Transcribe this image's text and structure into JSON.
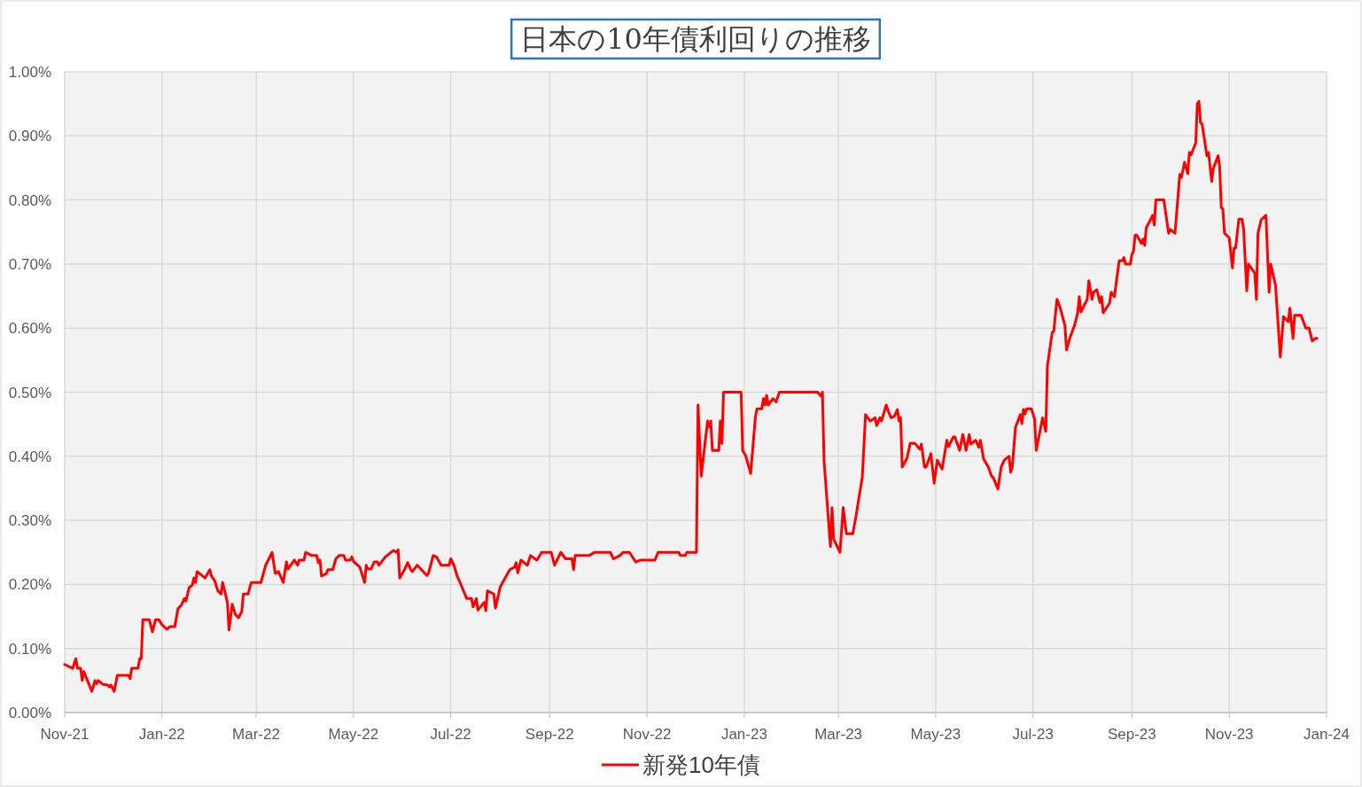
{
  "chart_data": {
    "type": "line",
    "title": "日本の10年債利回りの推移",
    "x": [
      "2021-11-01",
      "2021-11-06",
      "2021-11-08",
      "2021-11-09",
      "2021-11-11",
      "2021-11-12",
      "2021-11-13",
      "2021-11-18",
      "2021-11-20",
      "2021-11-21",
      "2021-11-22",
      "2021-11-25",
      "2021-11-28",
      "2021-11-29",
      "2021-11-30",
      "2021-12-02",
      "2021-12-04",
      "2021-12-11",
      "2021-12-12",
      "2021-12-13",
      "2021-12-17",
      "2021-12-18",
      "2021-12-19",
      "2021-12-20",
      "2021-12-24",
      "2021-12-26",
      "2021-12-28",
      "2021-12-30",
      "2022-01-01",
      "2022-01-04",
      "2022-01-06",
      "2022-01-09",
      "2022-01-11",
      "2022-01-13",
      "2022-01-15",
      "2022-01-16",
      "2022-01-18",
      "2022-01-20",
      "2022-01-21",
      "2022-01-22",
      "2022-01-23",
      "2022-01-28",
      "2022-01-31",
      "2022-02-01",
      "2022-02-03",
      "2022-02-05",
      "2022-02-07",
      "2022-02-08",
      "2022-02-11",
      "2022-02-12",
      "2022-02-14",
      "2022-02-16",
      "2022-02-18",
      "2022-02-20",
      "2022-02-21",
      "2022-02-24",
      "2022-02-25",
      "2022-02-26",
      "2022-02-28",
      "2022-03-04",
      "2022-03-07",
      "2022-03-11",
      "2022-03-13",
      "2022-03-15",
      "2022-03-18",
      "2022-03-20",
      "2022-03-21",
      "2022-03-25",
      "2022-03-27",
      "2022-03-28",
      "2022-03-31",
      "2022-04-01",
      "2022-04-05",
      "2022-04-08",
      "2022-04-09",
      "2022-04-10",
      "2022-04-11",
      "2022-04-14",
      "2022-04-15",
      "2022-04-18",
      "2022-04-20",
      "2022-04-22",
      "2022-04-25",
      "2022-04-26",
      "2022-04-29",
      "2022-04-30",
      "2022-05-01",
      "2022-05-05",
      "2022-05-08",
      "2022-05-09",
      "2022-05-10",
      "2022-05-12",
      "2022-05-14",
      "2022-05-16",
      "2022-05-17",
      "2022-05-21",
      "2022-05-26",
      "2022-05-28",
      "2022-05-29",
      "2022-05-30",
      "2022-06-02",
      "2022-06-04",
      "2022-06-06",
      "2022-06-07",
      "2022-06-10",
      "2022-06-16",
      "2022-06-17",
      "2022-06-20",
      "2022-06-22",
      "2022-06-25",
      "2022-06-30",
      "2022-07-01",
      "2022-07-03",
      "2022-07-05",
      "2022-07-07",
      "2022-07-11",
      "2022-07-14",
      "2022-07-15",
      "2022-07-17",
      "2022-07-18",
      "2022-07-22",
      "2022-07-23",
      "2022-07-24",
      "2022-07-28",
      "2022-07-29",
      "2022-08-01",
      "2022-08-07",
      "2022-08-10",
      "2022-08-11",
      "2022-08-12",
      "2022-08-14",
      "2022-08-18",
      "2022-08-20",
      "2022-08-24",
      "2022-08-27",
      "2022-09-02",
      "2022-09-04",
      "2022-09-08",
      "2022-09-11",
      "2022-09-15",
      "2022-09-16",
      "2022-09-17",
      "2022-09-26",
      "2022-09-29",
      "2022-10-09",
      "2022-10-11",
      "2022-10-15",
      "2022-10-17",
      "2022-10-21",
      "2022-10-25",
      "2022-10-28",
      "2022-11-06",
      "2022-11-08",
      "2022-11-21",
      "2022-11-22",
      "2022-11-25",
      "2022-11-26",
      "2022-12-01",
      "2022-12-02",
      "2022-12-03",
      "2022-12-05",
      "2022-12-09",
      "2022-12-10",
      "2022-12-11",
      "2022-12-12",
      "2022-12-16",
      "2022-12-17",
      "2022-12-18",
      "2022-12-19",
      "2022-12-30",
      "2022-12-31",
      "2023-01-02",
      "2023-01-05",
      "2023-01-08",
      "2023-01-09",
      "2023-01-12",
      "2023-01-13",
      "2023-01-14",
      "2023-01-15",
      "2023-01-16",
      "2023-01-19",
      "2023-01-21",
      "2023-01-23",
      "2023-02-16",
      "2023-02-18",
      "2023-02-19",
      "2023-02-20",
      "2023-02-24",
      "2023-02-25",
      "2023-02-26",
      "2023-03-02",
      "2023-03-04",
      "2023-03-06",
      "2023-03-10",
      "2023-03-12",
      "2023-03-16",
      "2023-03-18",
      "2023-03-21",
      "2023-03-24",
      "2023-03-25",
      "2023-03-27",
      "2023-03-28",
      "2023-03-31",
      "2023-04-01",
      "2023-04-03",
      "2023-04-05",
      "2023-04-07",
      "2023-04-08",
      "2023-04-09",
      "2023-04-10",
      "2023-04-13",
      "2023-04-15",
      "2023-04-18",
      "2023-04-21",
      "2023-04-22",
      "2023-04-24",
      "2023-04-25",
      "2023-04-28",
      "2023-04-30",
      "2023-05-02",
      "2023-05-05",
      "2023-05-08",
      "2023-05-09",
      "2023-05-12",
      "2023-05-13",
      "2023-05-16",
      "2023-05-18",
      "2023-05-20",
      "2023-05-22",
      "2023-05-23",
      "2023-05-26",
      "2023-05-28",
      "2023-05-29",
      "2023-05-31",
      "2023-06-03",
      "2023-06-05",
      "2023-06-06",
      "2023-06-09",
      "2023-06-11",
      "2023-06-13",
      "2023-06-16",
      "2023-06-17",
      "2023-06-18",
      "2023-06-20",
      "2023-06-23",
      "2023-06-24",
      "2023-06-25",
      "2023-06-26",
      "2023-06-27",
      "2023-06-30",
      "2023-07-02",
      "2023-07-03",
      "2023-07-07",
      "2023-07-09",
      "2023-07-10",
      "2023-07-13",
      "2023-07-14",
      "2023-07-16",
      "2023-07-18",
      "2023-07-21",
      "2023-07-22",
      "2023-07-24",
      "2023-07-27",
      "2023-07-29",
      "2023-07-30",
      "2023-07-31",
      "2023-08-04",
      "2023-08-05",
      "2023-08-07",
      "2023-08-08",
      "2023-08-10",
      "2023-08-12",
      "2023-08-13",
      "2023-08-14",
      "2023-08-18",
      "2023-08-19",
      "2023-08-21",
      "2023-08-24",
      "2023-08-26",
      "2023-08-27",
      "2023-08-28",
      "2023-08-31",
      "2023-09-01",
      "2023-09-02",
      "2023-09-03",
      "2023-09-04",
      "2023-09-07",
      "2023-09-08",
      "2023-09-09",
      "2023-09-10",
      "2023-09-12",
      "2023-09-14",
      "2023-09-15",
      "2023-09-16",
      "2023-09-21",
      "2023-09-24",
      "2023-09-25",
      "2023-09-28",
      "2023-10-01",
      "2023-10-02",
      "2023-10-04",
      "2023-10-06",
      "2023-10-07",
      "2023-10-08",
      "2023-10-11",
      "2023-10-12",
      "2023-10-13",
      "2023-10-14",
      "2023-10-15",
      "2023-10-18",
      "2023-10-19",
      "2023-10-21",
      "2023-10-22",
      "2023-10-25",
      "2023-10-26",
      "2023-10-27",
      "2023-10-28",
      "2023-10-29",
      "2023-11-01",
      "2023-11-03",
      "2023-11-04",
      "2023-11-05",
      "2023-11-07",
      "2023-11-09",
      "2023-11-10",
      "2023-11-12",
      "2023-11-13",
      "2023-11-17",
      "2023-11-18",
      "2023-11-19",
      "2023-11-21",
      "2023-11-24",
      "2023-11-26",
      "2023-11-27",
      "2023-11-30",
      "2023-12-03",
      "2023-12-05",
      "2023-12-08",
      "2023-12-09",
      "2023-12-11",
      "2023-12-12",
      "2023-12-16",
      "2023-12-19",
      "2023-12-21",
      "2023-12-23",
      "2023-12-25",
      "2023-12-26"
    ],
    "series": [
      {
        "name": "新発10年債",
        "color": "#ff0000",
        "values": [
          0.075,
          0.069,
          0.084,
          0.069,
          0.069,
          0.05,
          0.064,
          0.033,
          0.05,
          0.045,
          0.05,
          0.044,
          0.043,
          0.04,
          0.043,
          0.033,
          0.058,
          0.058,
          0.053,
          0.069,
          0.069,
          0.084,
          0.084,
          0.145,
          0.145,
          0.126,
          0.145,
          0.145,
          0.137,
          0.13,
          0.134,
          0.134,
          0.162,
          0.167,
          0.178,
          0.174,
          0.195,
          0.199,
          0.21,
          0.203,
          0.22,
          0.21,
          0.223,
          0.213,
          0.206,
          0.19,
          0.185,
          0.203,
          0.172,
          0.129,
          0.169,
          0.153,
          0.148,
          0.158,
          0.185,
          0.185,
          0.195,
          0.203,
          0.203,
          0.203,
          0.23,
          0.25,
          0.217,
          0.22,
          0.203,
          0.235,
          0.224,
          0.238,
          0.23,
          0.238,
          0.238,
          0.25,
          0.245,
          0.245,
          0.234,
          0.238,
          0.213,
          0.217,
          0.223,
          0.223,
          0.24,
          0.245,
          0.245,
          0.238,
          0.238,
          0.243,
          0.236,
          0.227,
          0.203,
          0.23,
          0.224,
          0.224,
          0.235,
          0.235,
          0.23,
          0.243,
          0.253,
          0.25,
          0.254,
          0.21,
          0.223,
          0.234,
          0.223,
          0.22,
          0.23,
          0.214,
          0.217,
          0.245,
          0.243,
          0.23,
          0.23,
          0.24,
          0.23,
          0.213,
          0.202,
          0.178,
          0.178,
          0.165,
          0.178,
          0.16,
          0.172,
          0.159,
          0.19,
          0.185,
          0.163,
          0.196,
          0.223,
          0.227,
          0.234,
          0.218,
          0.238,
          0.23,
          0.245,
          0.238,
          0.25,
          0.25,
          0.23,
          0.25,
          0.24,
          0.24,
          0.223,
          0.245,
          0.245,
          0.25,
          0.25,
          0.24,
          0.245,
          0.25,
          0.25,
          0.235,
          0.238,
          0.238,
          0.25,
          0.25,
          0.245,
          0.245,
          0.25,
          0.25,
          0.25,
          0.48,
          0.369,
          0.455,
          0.446,
          0.455,
          0.409,
          0.409,
          0.455,
          0.42,
          0.5,
          0.5,
          0.409,
          0.4,
          0.373,
          0.462,
          0.474,
          0.474,
          0.49,
          0.48,
          0.495,
          0.48,
          0.49,
          0.485,
          0.5,
          0.5,
          0.494,
          0.5,
          0.393,
          0.259,
          0.32,
          0.271,
          0.25,
          0.32,
          0.279,
          0.279,
          0.306,
          0.368,
          0.465,
          0.455,
          0.46,
          0.448,
          0.46,
          0.455,
          0.48,
          0.472,
          0.46,
          0.462,
          0.473,
          0.455,
          0.46,
          0.383,
          0.397,
          0.42,
          0.42,
          0.411,
          0.419,
          0.383,
          0.383,
          0.404,
          0.358,
          0.394,
          0.38,
          0.425,
          0.415,
          0.43,
          0.43,
          0.409,
          0.434,
          0.409,
          0.434,
          0.419,
          0.425,
          0.414,
          0.425,
          0.396,
          0.383,
          0.369,
          0.367,
          0.349,
          0.383,
          0.394,
          0.4,
          0.375,
          0.383,
          0.445,
          0.465,
          0.451,
          0.473,
          0.466,
          0.474,
          0.474,
          0.458,
          0.409,
          0.46,
          0.439,
          0.541,
          0.593,
          0.595,
          0.645,
          0.632,
          0.604,
          0.566,
          0.584,
          0.604,
          0.624,
          0.649,
          0.625,
          0.645,
          0.674,
          0.645,
          0.656,
          0.66,
          0.64,
          0.649,
          0.624,
          0.639,
          0.656,
          0.649,
          0.705,
          0.705,
          0.71,
          0.7,
          0.7,
          0.715,
          0.72,
          0.745,
          0.745,
          0.732,
          0.739,
          0.729,
          0.757,
          0.766,
          0.776,
          0.761,
          0.8,
          0.8,
          0.748,
          0.754,
          0.748,
          0.84,
          0.835,
          0.859,
          0.841,
          0.874,
          0.87,
          0.889,
          0.95,
          0.954,
          0.921,
          0.918,
          0.869,
          0.874,
          0.829,
          0.849,
          0.869,
          0.852,
          0.788,
          0.786,
          0.748,
          0.741,
          0.694,
          0.725,
          0.725,
          0.77,
          0.77,
          0.755,
          0.658,
          0.7,
          0.686,
          0.645,
          0.748,
          0.769,
          0.776,
          0.656,
          0.7,
          0.667,
          0.555,
          0.618,
          0.61,
          0.631,
          0.584,
          0.62,
          0.62,
          0.6,
          0.6,
          0.58,
          0.584,
          0.584
        ]
      }
    ],
    "xlim": [
      "2021-11-01",
      "2024-01-01"
    ],
    "xticks": [
      {
        "value": "2021-11-01",
        "label": "Nov-21"
      },
      {
        "value": "2022-01-01",
        "label": "Jan-22"
      },
      {
        "value": "2022-03-01",
        "label": "Mar-22"
      },
      {
        "value": "2022-05-01",
        "label": "May-22"
      },
      {
        "value": "2022-07-01",
        "label": "Jul-22"
      },
      {
        "value": "2022-09-01",
        "label": "Sep-22"
      },
      {
        "value": "2022-11-01",
        "label": "Nov-22"
      },
      {
        "value": "2023-01-01",
        "label": "Jan-23"
      },
      {
        "value": "2023-03-01",
        "label": "Mar-23"
      },
      {
        "value": "2023-05-01",
        "label": "May-23"
      },
      {
        "value": "2023-07-01",
        "label": "Jul-23"
      },
      {
        "value": "2023-09-01",
        "label": "Sep-23"
      },
      {
        "value": "2023-11-01",
        "label": "Nov-23"
      },
      {
        "value": "2024-01-01",
        "label": "Jan-24"
      }
    ],
    "ylim": [
      0,
      1
    ],
    "yticks": [
      {
        "value": 0,
        "label": "0.00%"
      },
      {
        "value": 0.1,
        "label": "0.10%"
      },
      {
        "value": 0.2,
        "label": "0.20%"
      },
      {
        "value": 0.3,
        "label": "0.30%"
      },
      {
        "value": 0.4,
        "label": "0.40%"
      },
      {
        "value": 0.5,
        "label": "0.50%"
      },
      {
        "value": 0.6,
        "label": "0.60%"
      },
      {
        "value": 0.7,
        "label": "0.70%"
      },
      {
        "value": 0.8,
        "label": "0.80%"
      },
      {
        "value": 0.9,
        "label": "0.90%"
      },
      {
        "value": 1,
        "label": "1.00%"
      }
    ],
    "grid": true,
    "legend": "bottom"
  }
}
